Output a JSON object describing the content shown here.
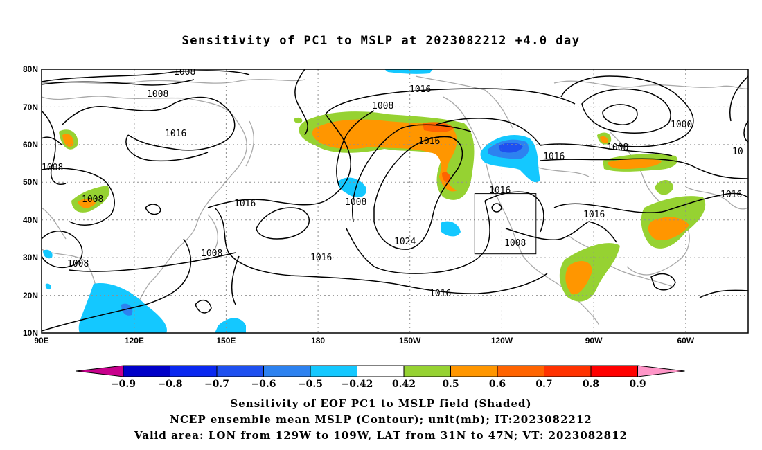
{
  "title": "Sensitivity of PC1 to MSLP at 2023082212 +4.0 day",
  "axes": {
    "lat_labels": [
      "80N",
      "70N",
      "60N",
      "50N",
      "40N",
      "30N",
      "20N",
      "10N"
    ],
    "lon_labels": [
      "90E",
      "120E",
      "150E",
      "180",
      "150W",
      "120W",
      "90W",
      "60W"
    ]
  },
  "contour_labels": [
    "1008",
    "1008",
    "1016",
    "1008",
    "1008",
    "1008",
    "1008",
    "1016",
    "1016",
    "1016",
    "1016",
    "1024",
    "1016",
    "1016",
    "1008",
    "1008",
    "1016",
    "1000",
    "1008",
    "10",
    "1016"
  ],
  "box": {
    "lon_from": "129W",
    "lon_to": "109W",
    "lat_from": "31N",
    "lat_to": "47N"
  },
  "colorbar": {
    "labels": [
      "-0.9",
      "-0.8",
      "-0.7",
      "-0.6",
      "-0.5",
      "-0.42",
      "0.42",
      "0.5",
      "0.6",
      "0.7",
      "0.8",
      "0.9"
    ],
    "colors": [
      "#c8008c",
      "#0000c8",
      "#0a28f0",
      "#1e50f0",
      "#2d82f0",
      "#14c8ff",
      "#ffffff",
      "#96d232",
      "#ff9600",
      "#ff6400",
      "#ff3200",
      "#ff0000",
      "#ff96c8"
    ]
  },
  "captions": {
    "line1": "Sensitivity of EOF PC1 to MSLP field (Shaded)",
    "line2": "NCEP ensemble mean MSLP (Contour); unit(mb); IT:2023082212",
    "line3": "Valid area: LON from 129W to 109W, LAT from 31N to 47N; VT: 2023082812"
  }
}
